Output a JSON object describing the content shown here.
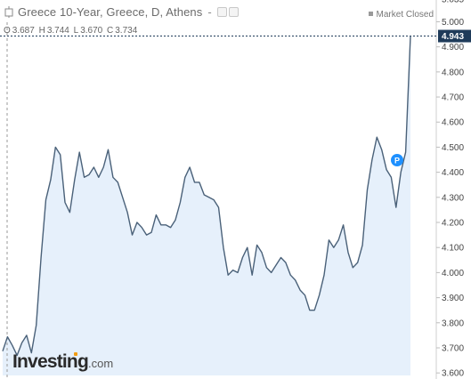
{
  "header": {
    "title": "Greece 10-Year, Greece, D, Athens",
    "separator": "-",
    "market_status": "Market Closed"
  },
  "ohlc": {
    "o_label": "O",
    "o_value": "3.687",
    "h_label": "H",
    "h_value": "3.744",
    "l_label": "L",
    "l_value": "3.670",
    "c_label": "C",
    "c_value": "3.734"
  },
  "logo": {
    "name": "Investing",
    "suffix": ".com"
  },
  "colors": {
    "line": "#4a6179",
    "area": "#e6f0fb",
    "axis": "#cfcfcf",
    "price_tag": "#1f3b5a",
    "event_marker": "#1e90ff"
  },
  "chart_data": {
    "type": "area",
    "title": "Greece 10-Year, Greece, D, Athens",
    "ylim": [
      3.59,
      5.03
    ],
    "y_ticks": [
      3.6,
      3.7,
      3.8,
      3.9,
      4.0,
      4.1,
      4.2,
      4.3,
      4.4,
      4.5,
      4.6,
      4.7,
      4.8,
      4.9,
      5.0
    ],
    "y_tick_labels": [
      "3.600",
      "3.700",
      "3.800",
      "3.900",
      "4.000",
      "4.100",
      "4.200",
      "4.300",
      "4.400",
      "4.500",
      "4.600",
      "4.700",
      "4.800",
      "4.900",
      "5.000"
    ],
    "top_partial_label": "5.035",
    "last_price_label": "4.943",
    "last_price": 4.943,
    "grid": false,
    "event_marker": {
      "label": "P",
      "index": 56
    },
    "values": [
      3.687,
      3.744,
      3.71,
      3.67,
      3.72,
      3.75,
      3.68,
      3.79,
      4.06,
      4.29,
      4.37,
      4.5,
      4.47,
      4.28,
      4.24,
      4.37,
      4.48,
      4.38,
      4.39,
      4.42,
      4.38,
      4.42,
      4.49,
      4.38,
      4.36,
      4.3,
      4.24,
      4.15,
      4.2,
      4.18,
      4.15,
      4.16,
      4.23,
      4.19,
      4.19,
      4.18,
      4.21,
      4.28,
      4.38,
      4.42,
      4.36,
      4.36,
      4.31,
      4.3,
      4.29,
      4.26,
      4.1,
      3.99,
      4.01,
      4.0,
      4.06,
      4.1,
      3.99,
      4.11,
      4.08,
      4.02,
      4.0,
      4.03,
      4.06,
      4.04,
      3.99,
      3.97,
      3.93,
      3.91,
      3.85,
      3.85,
      3.91,
      3.99,
      4.13,
      4.1,
      4.13,
      4.19,
      4.08,
      4.02,
      4.04,
      4.11,
      4.33,
      4.45,
      4.54,
      4.49,
      4.41,
      4.38,
      4.26,
      4.4,
      4.48,
      4.943
    ]
  }
}
